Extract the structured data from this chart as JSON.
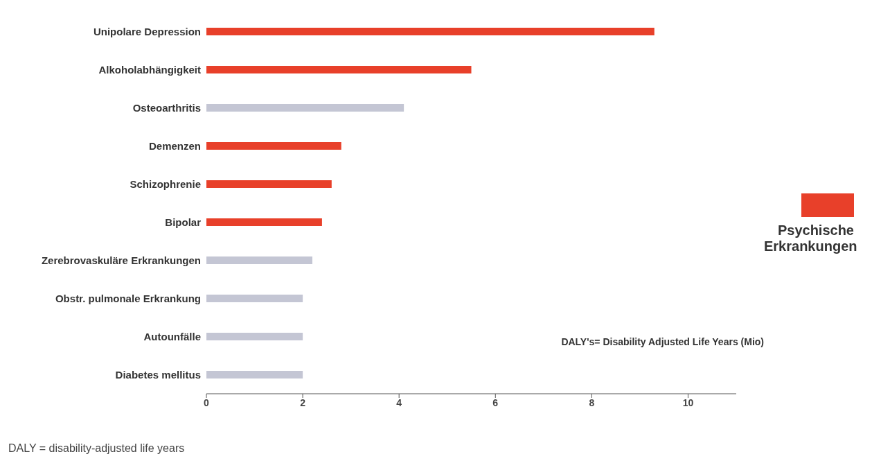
{
  "chart_data": {
    "type": "bar",
    "orientation": "horizontal",
    "stacked": true,
    "categories": [
      "Unipolare Depression",
      "Alkoholabhängigkeit",
      "Osteoarthritis",
      "Demenzen",
      "Schizophrenie",
      "Bipolar",
      "Zerebrovaskuläre Erkrankungen",
      "Obstr. pulmonale Erkrankung",
      "Autounfälle",
      "Diabetes mellitus"
    ],
    "series": [
      {
        "name": "Psychische Erkrankungen",
        "color": "#e8402a",
        "values": [
          9.3,
          5.5,
          null,
          2.8,
          2.6,
          2.4,
          null,
          null,
          null,
          null
        ]
      },
      {
        "color": "#c4c6d4",
        "values": [
          null,
          null,
          4.1,
          null,
          null,
          null,
          2.2,
          2.0,
          2.0,
          2.0
        ]
      }
    ],
    "xlim": [
      0,
      11
    ],
    "xticks": [
      0,
      2,
      4,
      6,
      8,
      10
    ],
    "xlabel": "DALY's= Disability Adjusted Life Years (Mio)",
    "annotations": [
      "DALY = disability-adjusted life years"
    ],
    "legend": "right",
    "grid": false
  }
}
